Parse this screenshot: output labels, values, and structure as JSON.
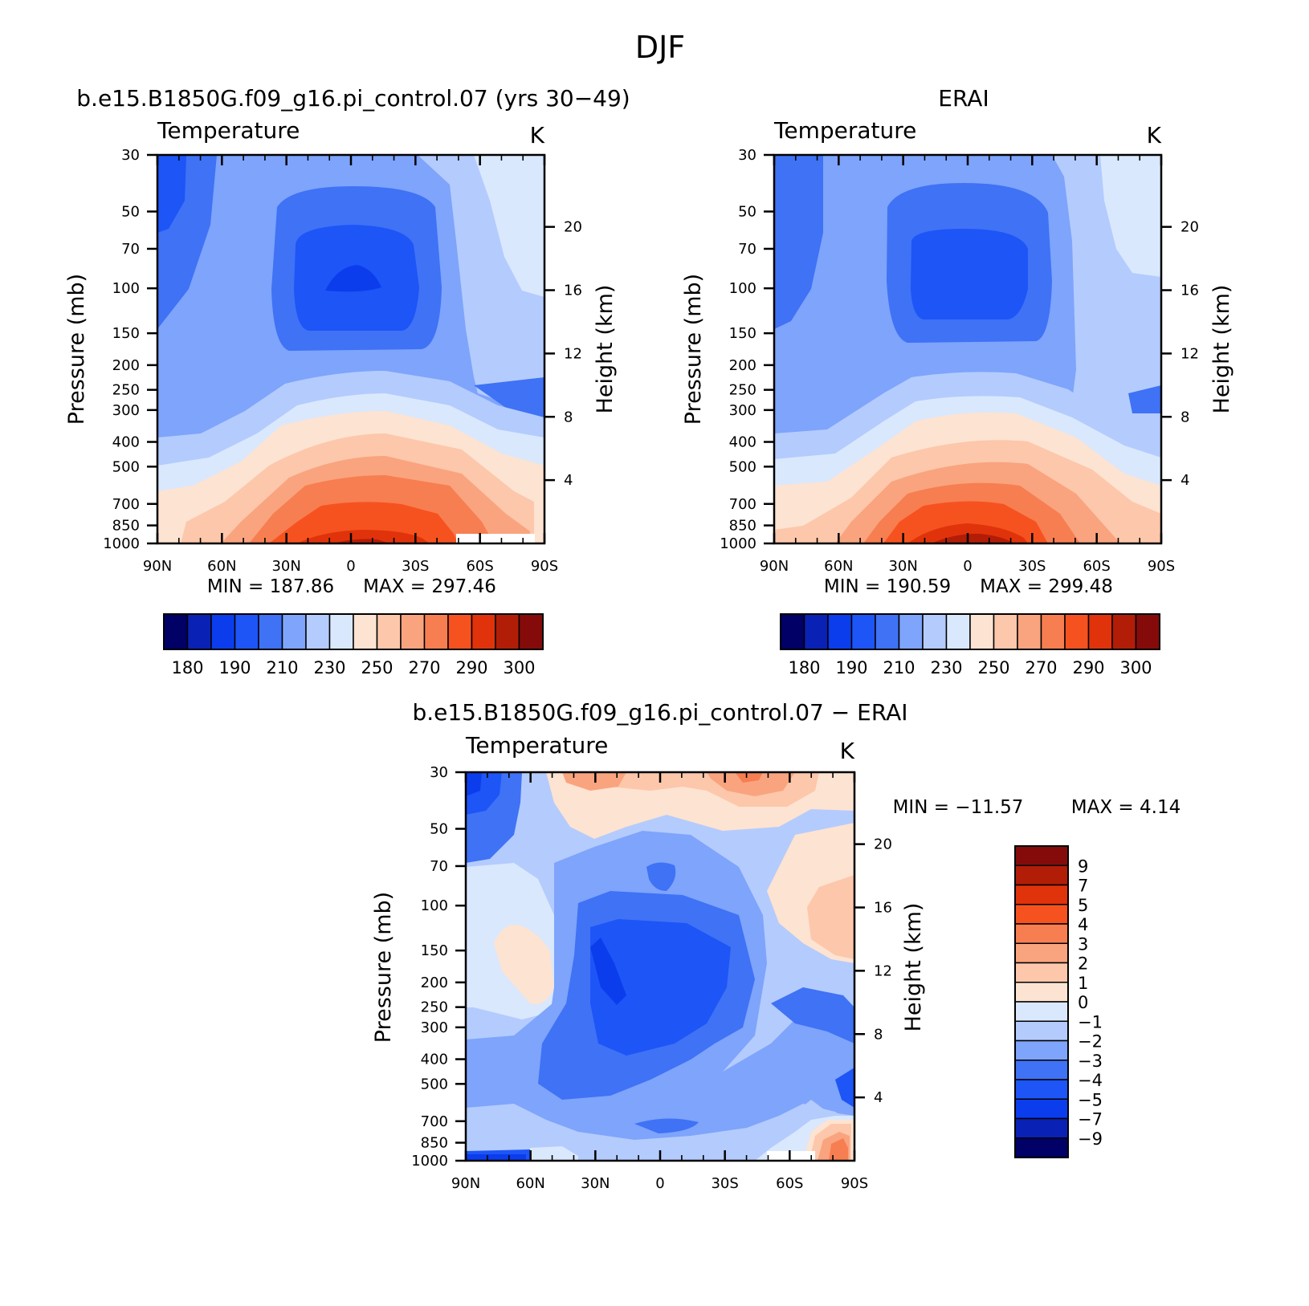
{
  "figure": {
    "title": "DJF",
    "palette_temperature": [
      "#000066",
      "#0a21b5",
      "#0b3ded",
      "#1d55f7",
      "#3f72f5",
      "#7ea4fb",
      "#b4cbfd",
      "#d9e8fd",
      "#fde3d1",
      "#fcc7ab",
      "#f9a47f",
      "#f77e51",
      "#f6521f",
      "#e0330b",
      "#b21d08",
      "#850b0b"
    ],
    "palette_difference": [
      "#000066",
      "#0a21b5",
      "#0b3ded",
      "#1d55f7",
      "#3f72f5",
      "#7ea4fb",
      "#b4cbfd",
      "#d9e8fd",
      "#fde3d1",
      "#fcc7ab",
      "#f9a47f",
      "#f77e51",
      "#f6521f",
      "#e0330b",
      "#b21d08",
      "#850b0b"
    ]
  },
  "chart_data": [
    {
      "type": "heatmap",
      "title": "b.e15.B1850G.f09_g16.pi_control.07 (yrs 30−49)",
      "subtitle_left": "Temperature",
      "subtitle_right": "K",
      "xlabel": "",
      "ylabel": "Pressure (mb)",
      "ylabel_right": "Height (km)",
      "x_ticks": [
        "90N",
        "60N",
        "30N",
        "0",
        "30S",
        "60S",
        "90S"
      ],
      "y_ticks": [
        "30",
        "50",
        "70",
        "100",
        "150",
        "200",
        "250",
        "300",
        "400",
        "500",
        "700",
        "850",
        "1000"
      ],
      "y_ticks_right": [
        "20",
        "16",
        "12",
        "8",
        "4"
      ],
      "min_text": "MIN = 187.86",
      "max_text": "MAX = 297.46",
      "min": 187.86,
      "max": 297.46,
      "colorbar_labels": [
        "180",
        "190",
        "210",
        "230",
        "250",
        "270",
        "290",
        "300"
      ],
      "colorbar_orientation": "horizontal",
      "field_description": "Zonal-mean temperature: warm (~297 K) near 1000 mb at the equator, cold tropical tropopause minimum (~188 K) near 100 mb at the equator"
    },
    {
      "type": "heatmap",
      "title": "ERAI",
      "subtitle_left": "Temperature",
      "subtitle_right": "K",
      "xlabel": "",
      "ylabel": "Pressure (mb)",
      "ylabel_right": "Height (km)",
      "x_ticks": [
        "90N",
        "60N",
        "30N",
        "0",
        "30S",
        "60S",
        "90S"
      ],
      "y_ticks": [
        "30",
        "50",
        "70",
        "100",
        "150",
        "200",
        "250",
        "300",
        "400",
        "500",
        "700",
        "850",
        "1000"
      ],
      "y_ticks_right": [
        "20",
        "16",
        "12",
        "8",
        "4"
      ],
      "min_text": "MIN = 190.59",
      "max_text": "MAX = 299.48",
      "min": 190.59,
      "max": 299.48,
      "colorbar_labels": [
        "180",
        "190",
        "210",
        "230",
        "250",
        "270",
        "290",
        "300"
      ],
      "colorbar_orientation": "horizontal"
    },
    {
      "type": "heatmap",
      "title": "b.e15.B1850G.f09_g16.pi_control.07 − ERAI",
      "subtitle_left": "Temperature",
      "subtitle_right": "K",
      "xlabel": "",
      "ylabel": "Pressure (mb)",
      "ylabel_right": "Height (km)",
      "x_ticks": [
        "90N",
        "60N",
        "30N",
        "0",
        "30S",
        "60S",
        "90S"
      ],
      "y_ticks": [
        "30",
        "50",
        "70",
        "100",
        "150",
        "200",
        "250",
        "300",
        "400",
        "500",
        "700",
        "850",
        "1000"
      ],
      "y_ticks_right": [
        "20",
        "16",
        "12",
        "8",
        "4"
      ],
      "min_text": "MIN = −11.57",
      "max_text": "MAX = 4.14",
      "min": -11.57,
      "max": 4.14,
      "colorbar_labels": [
        "9",
        "7",
        "5",
        "4",
        "3",
        "2",
        "1",
        "0",
        "−1",
        "−2",
        "−3",
        "−4",
        "−5",
        "−7",
        "−9"
      ],
      "colorbar_orientation": "vertical"
    }
  ]
}
